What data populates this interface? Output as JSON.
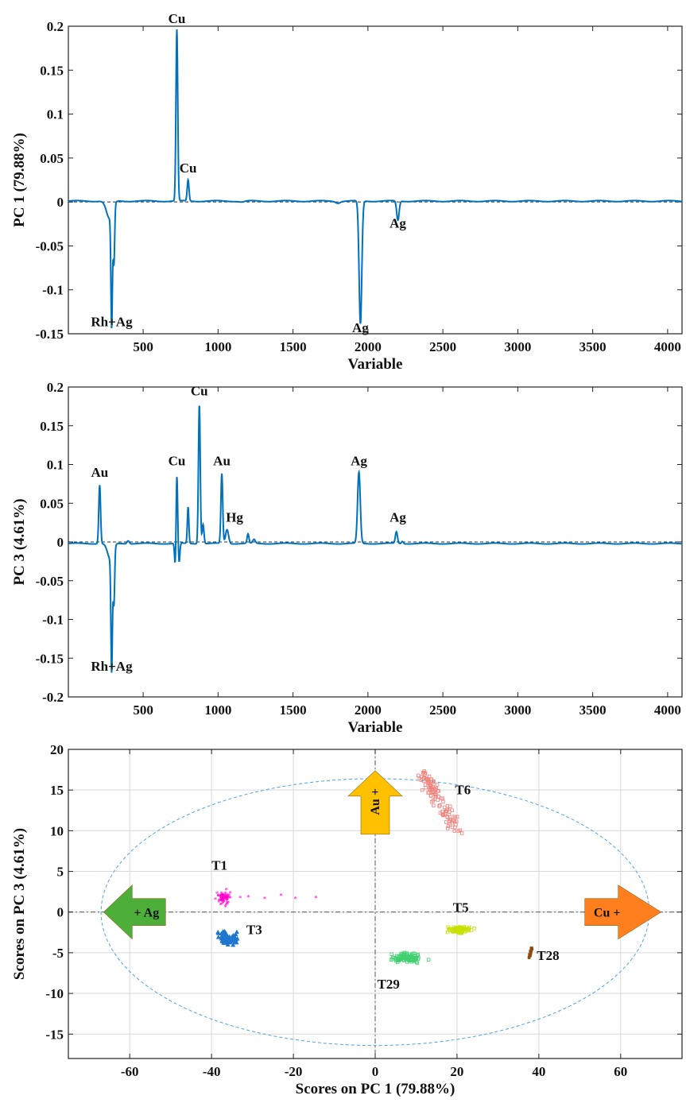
{
  "chart_data": [
    {
      "type": "line",
      "xlabel": "Variable",
      "ylabel": "PC 1 (79.88%)",
      "xlim": [
        1,
        4096
      ],
      "ylim": [
        -0.15,
        0.2
      ],
      "xticks": [
        500,
        1000,
        1500,
        2000,
        2500,
        3000,
        3500,
        4000
      ],
      "xtick_labels": [
        "500",
        "1000",
        "1500",
        "2000",
        "2500",
        "3000",
        "3500",
        "4000"
      ],
      "yticks": [
        -0.15,
        -0.1,
        -0.05,
        0,
        0.05,
        0.1,
        0.15,
        0.2
      ],
      "ytick_labels": [
        "-0.15",
        "-0.1",
        "-0.05",
        "0",
        "0.05",
        "0.1",
        "0.15",
        "0.2"
      ],
      "grid": false,
      "zero_line": "dashed",
      "line_color": "#0072BD",
      "baseline": 0.001,
      "peaks": [
        {
          "x": 290,
          "y": -0.13,
          "w": 5
        },
        {
          "x": 305,
          "y": -0.066,
          "w": 5
        },
        {
          "x": 275,
          "y": -0.02,
          "w": 20
        },
        {
          "x": 725,
          "y": 0.195,
          "w": 6
        },
        {
          "x": 800,
          "y": 0.024,
          "w": 6
        },
        {
          "x": 1950,
          "y": -0.14,
          "w": 9
        },
        {
          "x": 2200,
          "y": -0.022,
          "w": 8
        },
        {
          "x": 1800,
          "y": -0.002,
          "w": 14
        },
        {
          "x": 1160,
          "y": -0.001,
          "w": 18
        }
      ],
      "annotations": [
        {
          "text": "Cu",
          "x": 725,
          "y": 0.2
        },
        {
          "text": "Cu",
          "x": 800,
          "y": 0.03
        },
        {
          "text": "Rh+Ag",
          "x": 290,
          "y": -0.145
        },
        {
          "text": "Ag",
          "x": 1950,
          "y": -0.152
        },
        {
          "text": "Ag",
          "x": 2200,
          "y": -0.033
        }
      ]
    },
    {
      "type": "line",
      "xlabel": "Variable",
      "ylabel": "PC 3 (4.61%)",
      "xlim": [
        1,
        4096
      ],
      "ylim": [
        -0.2,
        0.2
      ],
      "xticks": [
        500,
        1000,
        1500,
        2000,
        2500,
        3000,
        3500,
        4000
      ],
      "xtick_labels": [
        "500",
        "1000",
        "1500",
        "2000",
        "2500",
        "3000",
        "3500",
        "4000"
      ],
      "yticks": [
        -0.2,
        -0.15,
        -0.1,
        -0.05,
        0,
        0.05,
        0.1,
        0.15,
        0.2
      ],
      "ytick_labels": [
        "-0.2",
        "-0.15",
        "-0.1",
        "-0.05",
        "0",
        "0.05",
        "0.1",
        "0.15",
        "0.2"
      ],
      "grid": false,
      "zero_line": "dashed",
      "line_color": "#0072BD",
      "baseline": -0.002,
      "peaks": [
        {
          "x": 210,
          "y": 0.076,
          "w": 6
        },
        {
          "x": 290,
          "y": -0.15,
          "w": 5
        },
        {
          "x": 305,
          "y": -0.072,
          "w": 5
        },
        {
          "x": 280,
          "y": -0.02,
          "w": 18
        },
        {
          "x": 715,
          "y": -0.032,
          "w": 5
        },
        {
          "x": 725,
          "y": 0.09,
          "w": 5
        },
        {
          "x": 740,
          "y": -0.025,
          "w": 5
        },
        {
          "x": 800,
          "y": 0.047,
          "w": 5
        },
        {
          "x": 875,
          "y": 0.18,
          "w": 6
        },
        {
          "x": 900,
          "y": 0.025,
          "w": 6
        },
        {
          "x": 1025,
          "y": 0.09,
          "w": 6
        },
        {
          "x": 1060,
          "y": 0.018,
          "w": 10
        },
        {
          "x": 1200,
          "y": 0.012,
          "w": 6
        },
        {
          "x": 1240,
          "y": 0.005,
          "w": 8
        },
        {
          "x": 1940,
          "y": 0.092,
          "w": 9
        },
        {
          "x": 2190,
          "y": 0.015,
          "w": 7
        },
        {
          "x": 2230,
          "y": 0.003,
          "w": 6
        },
        {
          "x": 400,
          "y": 0.004,
          "w": 8
        }
      ],
      "annotations": [
        {
          "text": "Au",
          "x": 210,
          "y": 0.08
        },
        {
          "text": "Cu",
          "x": 725,
          "y": 0.095
        },
        {
          "text": "Cu",
          "x": 875,
          "y": 0.185
        },
        {
          "text": "Au",
          "x": 1025,
          "y": 0.095
        },
        {
          "text": "Hg",
          "x": 1110,
          "y": 0.022
        },
        {
          "text": "Ag",
          "x": 1940,
          "y": 0.095
        },
        {
          "text": "Ag",
          "x": 2200,
          "y": 0.022
        },
        {
          "text": "Rh+Ag",
          "x": 290,
          "y": -0.17
        }
      ]
    },
    {
      "type": "scatter",
      "xlabel": "Scores on PC 1 (79.88%)",
      "ylabel": "Scores on PC 3 (4.61%)",
      "xlim": [
        -75,
        75
      ],
      "ylim": [
        -18,
        20
      ],
      "xticks": [
        -60,
        -40,
        -20,
        0,
        20,
        40,
        60
      ],
      "xtick_labels": [
        "-60",
        "-40",
        "-20",
        "0",
        "20",
        "40",
        "60"
      ],
      "yticks": [
        -15,
        -10,
        -5,
        0,
        5,
        10,
        15,
        20
      ],
      "ytick_labels": [
        "-15",
        "-10",
        "-5",
        "0",
        "5",
        "10",
        "15",
        "20"
      ],
      "grid": true,
      "confidence_ellipse": {
        "cx": 0,
        "cy": 0,
        "rx": 67,
        "ry": 16.4,
        "color": "#4DA3E0",
        "style": "dashed"
      },
      "series": [
        {
          "name": "T1",
          "color": "#FF00CC",
          "marker": "star",
          "center": [
            -37,
            1.6
          ],
          "spread": [
            1.6,
            0.8
          ],
          "n": 70,
          "extra_points": [
            [
              -33,
              1.7
            ],
            [
              -31,
              1.8
            ],
            [
              -27,
              1.6
            ],
            [
              -23,
              2.0
            ],
            [
              -19.5,
              1.6
            ],
            [
              -14.5,
              1.7
            ]
          ]
        },
        {
          "name": "T3",
          "color": "#1F77D0",
          "marker": "triangle",
          "center": [
            -36,
            -3.3
          ],
          "spread": [
            2.2,
            0.8
          ],
          "n": 80
        },
        {
          "name": "T6",
          "color": "#F2807A",
          "marker": "square-open",
          "center": [
            14.5,
            13.5
          ],
          "line": [
            [
              11,
              17.5
            ],
            [
              20,
              10
            ]
          ],
          "n": 110
        },
        {
          "name": "T5",
          "color": "#C8E000",
          "marker": "square-open",
          "center": [
            20.5,
            -2.2
          ],
          "spread": [
            2.5,
            0.35
          ],
          "n": 90
        },
        {
          "name": "T29",
          "color": "#40D070",
          "marker": "square-open",
          "center": [
            8,
            -5.6
          ],
          "spread": [
            3.5,
            0.55
          ],
          "n": 110
        },
        {
          "name": "T28",
          "color": "#8B4A10",
          "marker": "square",
          "center": [
            38,
            -5
          ],
          "line": [
            [
              37.7,
              -5.6
            ],
            [
              38.3,
              -4.4
            ]
          ],
          "n": 20
        }
      ],
      "labels": [
        {
          "text": "T6",
          "x": 19.5,
          "y": 14.5
        },
        {
          "text": "T1",
          "x": -40,
          "y": 5.2
        },
        {
          "text": "T3",
          "x": -31.5,
          "y": -2.7
        },
        {
          "text": "T5",
          "x": 19,
          "y": 0.0
        },
        {
          "text": "T28",
          "x": 39.5,
          "y": -5.9
        },
        {
          "text": "T29",
          "x": 0.5,
          "y": -9.4
        }
      ],
      "arrows": [
        {
          "text": "Au +",
          "direction": "up",
          "color": "#FFC000",
          "at": [
            0,
            12.3
          ]
        },
        {
          "text": "+ Ag",
          "direction": "left",
          "color": "#4DAF3A",
          "at": [
            -66,
            0
          ]
        },
        {
          "text": "Cu +",
          "direction": "right",
          "color": "#FF7F1E",
          "at": [
            66,
            0
          ]
        }
      ]
    }
  ]
}
